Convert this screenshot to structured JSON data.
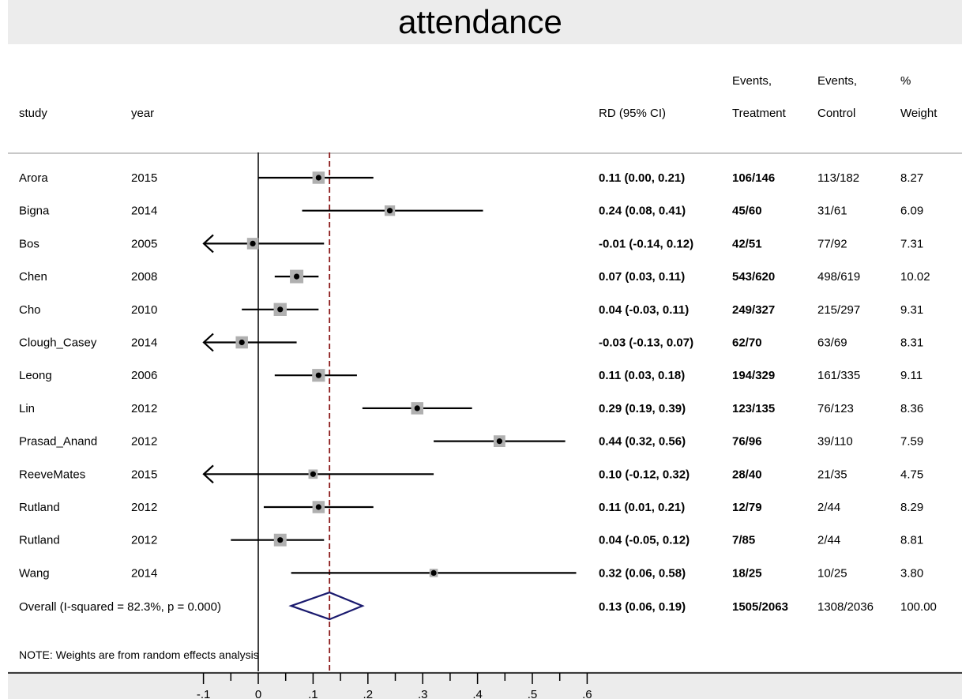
{
  "chart_data": {
    "type": "forest",
    "title": "attendance",
    "columns": {
      "study": "study",
      "year": "year",
      "rd": "RD (95% CI)",
      "events_treatment": [
        "Events,",
        "Treatment"
      ],
      "events_control": [
        "Events,",
        "Control"
      ],
      "weight": [
        "%",
        "Weight"
      ]
    },
    "rows": [
      {
        "study": "Arora",
        "year": "2015",
        "rd": 0.11,
        "lo": 0.0,
        "hi": 0.21,
        "ci_text": "0.11 (0.00, 0.21)",
        "treatment": "106/146",
        "control": "113/182",
        "weight": "8.27",
        "weight_value": 8.27,
        "arrow_left": false
      },
      {
        "study": "Bigna",
        "year": "2014",
        "rd": 0.24,
        "lo": 0.08,
        "hi": 0.41,
        "ci_text": "0.24 (0.08, 0.41)",
        "treatment": "45/60",
        "control": "31/61",
        "weight": "6.09",
        "weight_value": 6.09,
        "arrow_left": false
      },
      {
        "study": "Bos",
        "year": "2005",
        "rd": -0.01,
        "lo": -0.14,
        "hi": 0.12,
        "ci_text": "-0.01 (-0.14, 0.12)",
        "treatment": "42/51",
        "control": "77/92",
        "weight": "7.31",
        "weight_value": 7.31,
        "arrow_left": true
      },
      {
        "study": "Chen",
        "year": "2008",
        "rd": 0.07,
        "lo": 0.03,
        "hi": 0.11,
        "ci_text": "0.07 (0.03, 0.11)",
        "treatment": "543/620",
        "control": "498/619",
        "weight": "10.02",
        "weight_value": 10.02,
        "arrow_left": false
      },
      {
        "study": "Cho",
        "year": "2010",
        "rd": 0.04,
        "lo": -0.03,
        "hi": 0.11,
        "ci_text": "0.04 (-0.03, 0.11)",
        "treatment": "249/327",
        "control": "215/297",
        "weight": "9.31",
        "weight_value": 9.31,
        "arrow_left": false
      },
      {
        "study": "Clough_Casey",
        "year": "2014",
        "rd": -0.03,
        "lo": -0.13,
        "hi": 0.07,
        "ci_text": "-0.03 (-0.13, 0.07)",
        "treatment": "62/70",
        "control": "63/69",
        "weight": "8.31",
        "weight_value": 8.31,
        "arrow_left": true
      },
      {
        "study": "Leong",
        "year": "2006",
        "rd": 0.11,
        "lo": 0.03,
        "hi": 0.18,
        "ci_text": "0.11 (0.03, 0.18)",
        "treatment": "194/329",
        "control": "161/335",
        "weight": "9.11",
        "weight_value": 9.11,
        "arrow_left": false
      },
      {
        "study": "Lin",
        "year": "2012",
        "rd": 0.29,
        "lo": 0.19,
        "hi": 0.39,
        "ci_text": "0.29 (0.19, 0.39)",
        "treatment": "123/135",
        "control": "76/123",
        "weight": "8.36",
        "weight_value": 8.36,
        "arrow_left": false
      },
      {
        "study": "Prasad_Anand",
        "year": "2012",
        "rd": 0.44,
        "lo": 0.32,
        "hi": 0.56,
        "ci_text": "0.44 (0.32, 0.56)",
        "treatment": "76/96",
        "control": "39/110",
        "weight": "7.59",
        "weight_value": 7.59,
        "arrow_left": false
      },
      {
        "study": "ReeveMates",
        "year": "2015",
        "rd": 0.1,
        "lo": -0.12,
        "hi": 0.32,
        "ci_text": "0.10 (-0.12, 0.32)",
        "treatment": "28/40",
        "control": "21/35",
        "weight": "4.75",
        "weight_value": 4.75,
        "arrow_left": true
      },
      {
        "study": "Rutland",
        "year": "2012",
        "rd": 0.11,
        "lo": 0.01,
        "hi": 0.21,
        "ci_text": "0.11 (0.01, 0.21)",
        "treatment": "12/79",
        "control": "2/44",
        "weight": "8.29",
        "weight_value": 8.29,
        "arrow_left": false
      },
      {
        "study": "Rutland",
        "year": "2012",
        "rd": 0.04,
        "lo": -0.05,
        "hi": 0.12,
        "ci_text": "0.04 (-0.05, 0.12)",
        "treatment": "7/85",
        "control": "2/44",
        "weight": "8.81",
        "weight_value": 8.81,
        "arrow_left": false
      },
      {
        "study": "Wang",
        "year": "2014",
        "rd": 0.32,
        "lo": 0.06,
        "hi": 0.58,
        "ci_text": "0.32 (0.06, 0.58)",
        "treatment": "18/25",
        "control": "10/25",
        "weight": "3.80",
        "weight_value": 3.8,
        "arrow_left": false
      }
    ],
    "overall": {
      "label": "Overall  (I-squared = 82.3%, p = 0.000)",
      "rd": 0.13,
      "lo": 0.06,
      "hi": 0.19,
      "ci_text": "0.13 (0.06, 0.19)",
      "treatment": "1505/2063",
      "control": "1308/2036",
      "weight": "100.00"
    },
    "note": "NOTE: Weights are from random effects analysis",
    "xticks": [
      "-.1",
      "0",
      ".1",
      ".2",
      ".3",
      ".4",
      ".5",
      ".6"
    ],
    "xtick_values": [
      -0.1,
      0,
      0.1,
      0.2,
      0.3,
      0.4,
      0.5,
      0.6
    ],
    "null_line": 0,
    "pooled_line": 0.13,
    "colors": {
      "ci_line": "#000000",
      "box": "#b0b0b0",
      "diamond": "#1a1a6e",
      "pooled_line": "#8b1a1a",
      "band": "#ececec"
    }
  }
}
